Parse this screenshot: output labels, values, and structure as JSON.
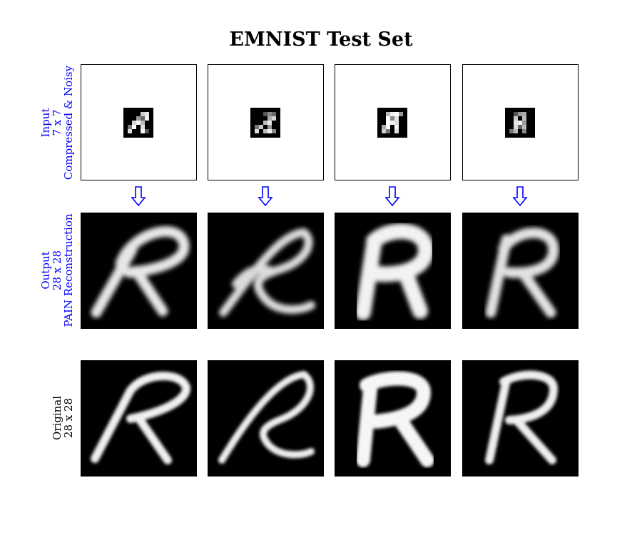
{
  "title": "EMNIST Test Set",
  "rows": {
    "input": {
      "lines": [
        "Input",
        "7 x 7",
        "Compressed & Noisy"
      ],
      "color": "#0000ff"
    },
    "output": {
      "lines": [
        "Output",
        "28 x 28",
        "PAIN Reconstruction"
      ],
      "color": "#0000ff"
    },
    "original": {
      "lines": [
        "Original",
        "28 x 28"
      ],
      "color": "#000000"
    }
  },
  "arrow_icon": "hollow-down-arrow-icon",
  "arrow_color": "#0000ff",
  "columns": [
    {
      "letter_style": "handwritten R, forward-leaning"
    },
    {
      "letter_style": "cursive R with long tail"
    },
    {
      "letter_style": "bold blocky R"
    },
    {
      "letter_style": "upright R"
    }
  ]
}
